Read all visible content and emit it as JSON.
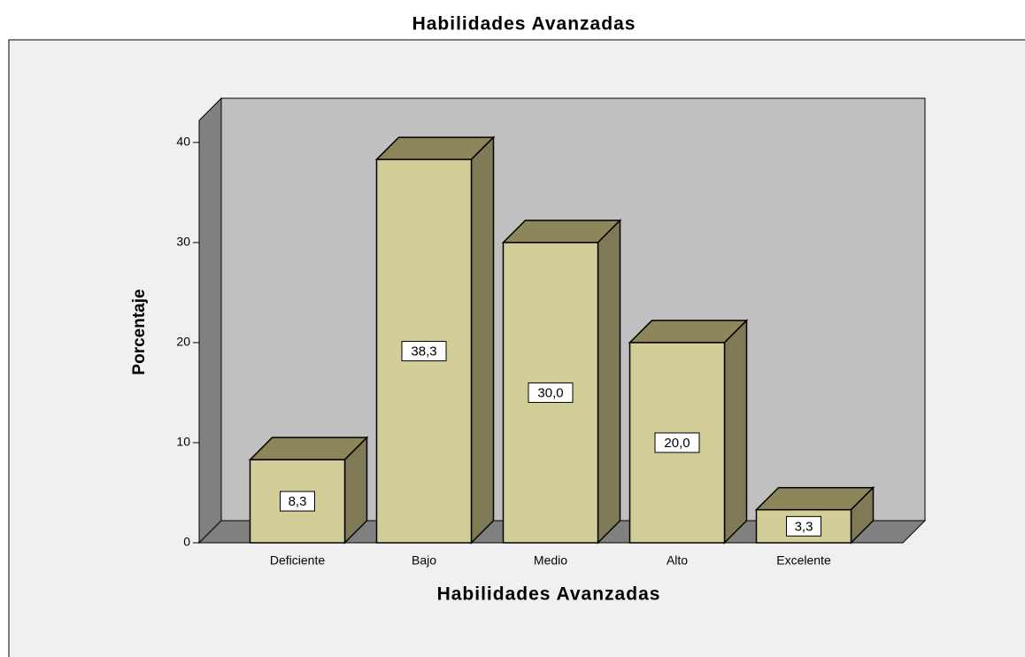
{
  "chart_data": {
    "type": "bar3d",
    "title": "Habilidades Avanzadas",
    "x_label": "Habilidades Avanzadas",
    "y_label": "Porcentaje",
    "categories": [
      "Deficiente",
      "Bajo",
      "Medio",
      "Alto",
      "Excelente"
    ],
    "values": [
      8.3,
      38.3,
      30.0,
      20.0,
      3.3
    ],
    "value_labels": [
      "8,3",
      "38,3",
      "30,0",
      "20,0",
      "3,3"
    ],
    "color": "#d3cd98",
    "ylim": [
      0,
      42.2
    ],
    "yticks": [
      0,
      10,
      20,
      30,
      40
    ]
  }
}
